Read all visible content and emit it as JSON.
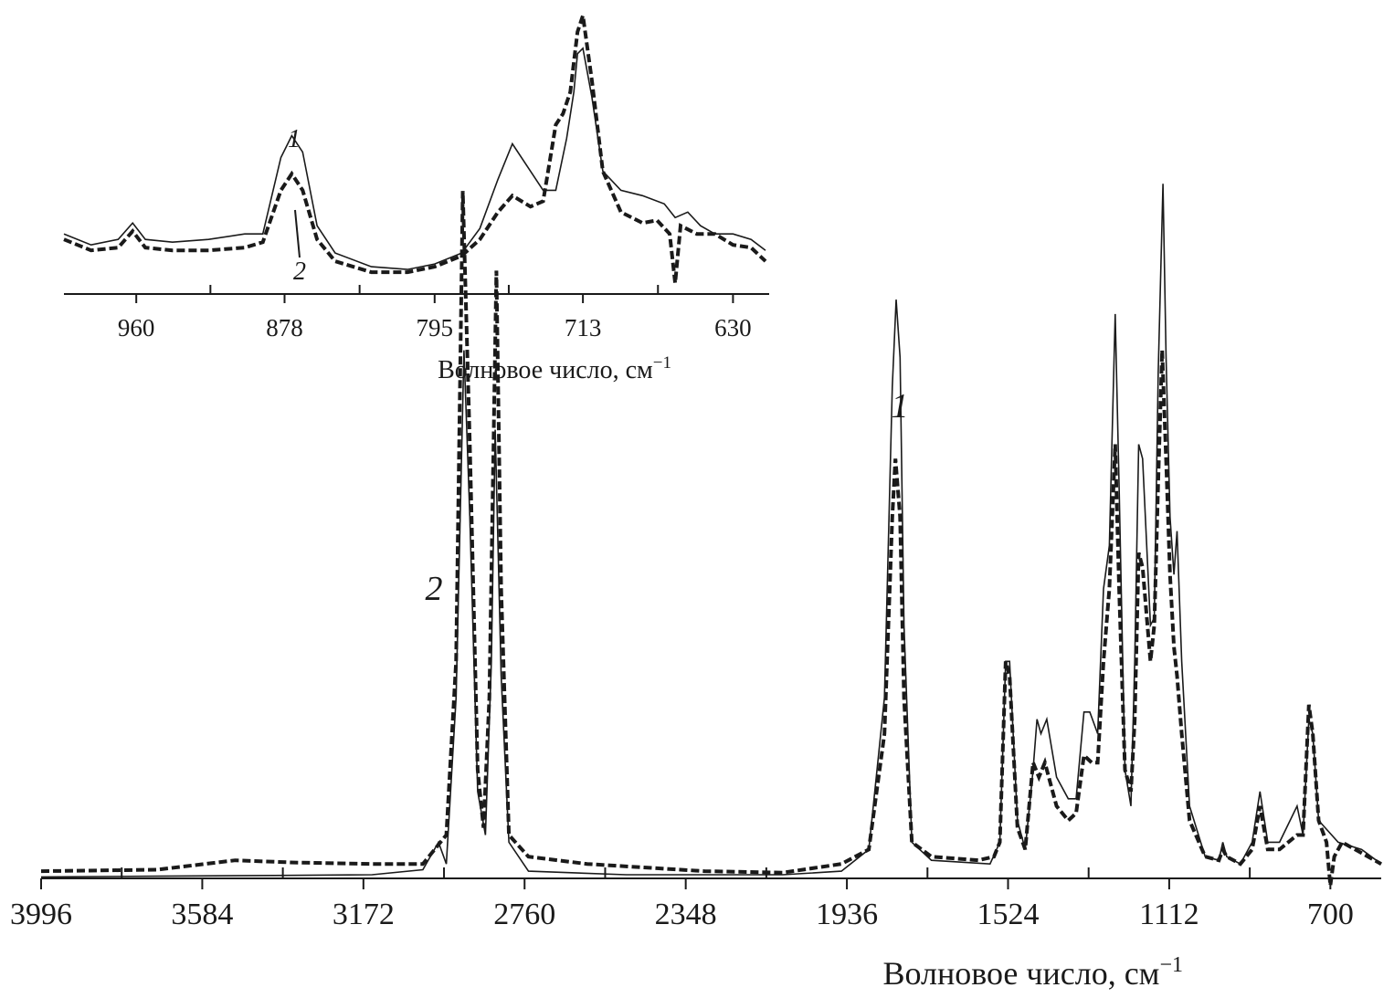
{
  "chart_data": [
    {
      "type": "line",
      "title": "",
      "xlabel": "Волновое число, см",
      "xlabel_sup": "−1",
      "ylabel": "",
      "x_reversed": true,
      "xlim": [
        3996,
        570
      ],
      "ylim": [
        0,
        1.05
      ],
      "x_ticks": [
        3996,
        3584,
        3172,
        2760,
        2348,
        1936,
        1524,
        1112,
        700
      ],
      "grid": false,
      "series": [
        {
          "name": "1",
          "style": "solid",
          "points": [
            [
              3996,
              0.002
            ],
            [
              3700,
              0.003
            ],
            [
              3400,
              0.004
            ],
            [
              3150,
              0.005
            ],
            [
              3020,
              0.012
            ],
            [
              2980,
              0.05
            ],
            [
              2960,
              0.02
            ],
            [
              2935,
              0.25
            ],
            [
              2915,
              0.73
            ],
            [
              2900,
              0.5
            ],
            [
              2880,
              0.12
            ],
            [
              2860,
              0.06
            ],
            [
              2845,
              0.3
            ],
            [
              2835,
              0.62
            ],
            [
              2820,
              0.28
            ],
            [
              2800,
              0.05
            ],
            [
              2750,
              0.01
            ],
            [
              2500,
              0.005
            ],
            [
              2100,
              0.005
            ],
            [
              1950,
              0.01
            ],
            [
              1880,
              0.04
            ],
            [
              1840,
              0.25
            ],
            [
              1820,
              0.68
            ],
            [
              1810,
              0.8
            ],
            [
              1800,
              0.72
            ],
            [
              1790,
              0.35
            ],
            [
              1770,
              0.05
            ],
            [
              1720,
              0.025
            ],
            [
              1570,
              0.02
            ],
            [
              1545,
              0.05
            ],
            [
              1530,
              0.3
            ],
            [
              1520,
              0.3
            ],
            [
              1500,
              0.08
            ],
            [
              1480,
              0.04
            ],
            [
              1460,
              0.15
            ],
            [
              1450,
              0.22
            ],
            [
              1440,
              0.2
            ],
            [
              1425,
              0.22
            ],
            [
              1400,
              0.14
            ],
            [
              1370,
              0.11
            ],
            [
              1350,
              0.11
            ],
            [
              1330,
              0.23
            ],
            [
              1315,
              0.23
            ],
            [
              1295,
              0.2
            ],
            [
              1280,
              0.4
            ],
            [
              1265,
              0.46
            ],
            [
              1250,
              0.78
            ],
            [
              1240,
              0.54
            ],
            [
              1225,
              0.15
            ],
            [
              1210,
              0.1
            ],
            [
              1200,
              0.3
            ],
            [
              1190,
              0.6
            ],
            [
              1180,
              0.58
            ],
            [
              1160,
              0.35
            ],
            [
              1150,
              0.36
            ],
            [
              1140,
              0.7
            ],
            [
              1128,
              0.96
            ],
            [
              1120,
              0.72
            ],
            [
              1110,
              0.5
            ],
            [
              1100,
              0.42
            ],
            [
              1092,
              0.48
            ],
            [
              1080,
              0.3
            ],
            [
              1060,
              0.1
            ],
            [
              1020,
              0.03
            ],
            [
              985,
              0.025
            ],
            [
              975,
              0.05
            ],
            [
              965,
              0.03
            ],
            [
              930,
              0.02
            ],
            [
              900,
              0.05
            ],
            [
              880,
              0.12
            ],
            [
              860,
              0.05
            ],
            [
              830,
              0.05
            ],
            [
              785,
              0.1
            ],
            [
              770,
              0.06
            ],
            [
              755,
              0.22
            ],
            [
              745,
              0.2
            ],
            [
              730,
              0.08
            ],
            [
              680,
              0.05
            ],
            [
              620,
              0.04
            ],
            [
              570,
              0.02
            ]
          ]
        },
        {
          "name": "2",
          "style": "dashed",
          "points": [
            [
              3996,
              0.01
            ],
            [
              3700,
              0.012
            ],
            [
              3500,
              0.025
            ],
            [
              3350,
              0.022
            ],
            [
              3150,
              0.02
            ],
            [
              3020,
              0.02
            ],
            [
              2960,
              0.06
            ],
            [
              2935,
              0.3
            ],
            [
              2918,
              0.95
            ],
            [
              2900,
              0.6
            ],
            [
              2880,
              0.15
            ],
            [
              2865,
              0.07
            ],
            [
              2850,
              0.25
            ],
            [
              2832,
              0.84
            ],
            [
              2820,
              0.4
            ],
            [
              2800,
              0.06
            ],
            [
              2750,
              0.03
            ],
            [
              2600,
              0.02
            ],
            [
              2300,
              0.01
            ],
            [
              2100,
              0.008
            ],
            [
              1950,
              0.02
            ],
            [
              1880,
              0.04
            ],
            [
              1840,
              0.2
            ],
            [
              1820,
              0.5
            ],
            [
              1812,
              0.58
            ],
            [
              1800,
              0.5
            ],
            [
              1790,
              0.25
            ],
            [
              1770,
              0.05
            ],
            [
              1720,
              0.03
            ],
            [
              1600,
              0.025
            ],
            [
              1560,
              0.03
            ],
            [
              1545,
              0.05
            ],
            [
              1530,
              0.3
            ],
            [
              1520,
              0.28
            ],
            [
              1500,
              0.07
            ],
            [
              1480,
              0.04
            ],
            [
              1460,
              0.16
            ],
            [
              1445,
              0.14
            ],
            [
              1430,
              0.16
            ],
            [
              1400,
              0.1
            ],
            [
              1370,
              0.08
            ],
            [
              1350,
              0.09
            ],
            [
              1330,
              0.17
            ],
            [
              1310,
              0.16
            ],
            [
              1295,
              0.16
            ],
            [
              1280,
              0.3
            ],
            [
              1265,
              0.4
            ],
            [
              1250,
              0.6
            ],
            [
              1240,
              0.4
            ],
            [
              1225,
              0.15
            ],
            [
              1210,
              0.12
            ],
            [
              1200,
              0.22
            ],
            [
              1190,
              0.45
            ],
            [
              1180,
              0.43
            ],
            [
              1160,
              0.3
            ],
            [
              1150,
              0.35
            ],
            [
              1140,
              0.55
            ],
            [
              1130,
              0.73
            ],
            [
              1120,
              0.58
            ],
            [
              1110,
              0.42
            ],
            [
              1100,
              0.32
            ],
            [
              1092,
              0.28
            ],
            [
              1080,
              0.2
            ],
            [
              1060,
              0.08
            ],
            [
              1020,
              0.03
            ],
            [
              985,
              0.025
            ],
            [
              975,
              0.04
            ],
            [
              965,
              0.03
            ],
            [
              930,
              0.02
            ],
            [
              900,
              0.04
            ],
            [
              880,
              0.1
            ],
            [
              860,
              0.04
            ],
            [
              830,
              0.04
            ],
            [
              785,
              0.06
            ],
            [
              770,
              0.06
            ],
            [
              755,
              0.24
            ],
            [
              745,
              0.2
            ],
            [
              730,
              0.08
            ],
            [
              710,
              0.05
            ],
            [
              700,
              -0.01
            ],
            [
              690,
              0.03
            ],
            [
              670,
              0.05
            ],
            [
              620,
              0.035
            ],
            [
              570,
              0.02
            ]
          ]
        }
      ],
      "annotations": [
        {
          "text": "1",
          "x": 1960,
          "y": 0.72,
          "target": "series-1"
        },
        {
          "text": "2",
          "x": 3080,
          "y": 0.43,
          "target": "series-2"
        }
      ]
    },
    {
      "type": "line",
      "title": "",
      "xlabel": "Волновое число, см",
      "xlabel_sup": "−1",
      "ylabel": "",
      "x_reversed": true,
      "xlim": [
        1000,
        610
      ],
      "ylim": [
        0,
        1.05
      ],
      "x_ticks": [
        960,
        878,
        795,
        713,
        630
      ],
      "grid": false,
      "series": [
        {
          "name": "1",
          "style": "solid",
          "points": [
            [
              1000,
              0.22
            ],
            [
              985,
              0.18
            ],
            [
              970,
              0.2
            ],
            [
              962,
              0.26
            ],
            [
              955,
              0.2
            ],
            [
              940,
              0.19
            ],
            [
              920,
              0.2
            ],
            [
              900,
              0.22
            ],
            [
              890,
              0.22
            ],
            [
              880,
              0.5
            ],
            [
              874,
              0.58
            ],
            [
              868,
              0.52
            ],
            [
              860,
              0.25
            ],
            [
              850,
              0.15
            ],
            [
              830,
              0.1
            ],
            [
              810,
              0.09
            ],
            [
              795,
              0.11
            ],
            [
              780,
              0.15
            ],
            [
              770,
              0.24
            ],
            [
              760,
              0.42
            ],
            [
              752,
              0.55
            ],
            [
              742,
              0.45
            ],
            [
              735,
              0.38
            ],
            [
              728,
              0.38
            ],
            [
              722,
              0.57
            ],
            [
              718,
              0.74
            ],
            [
              716,
              0.88
            ],
            [
              713,
              0.9
            ],
            [
              708,
              0.72
            ],
            [
              702,
              0.45
            ],
            [
              692,
              0.38
            ],
            [
              680,
              0.36
            ],
            [
              668,
              0.33
            ],
            [
              662,
              0.28
            ],
            [
              655,
              0.3
            ],
            [
              648,
              0.25
            ],
            [
              640,
              0.22
            ],
            [
              630,
              0.22
            ],
            [
              620,
              0.2
            ],
            [
              612,
              0.16
            ]
          ]
        },
        {
          "name": "2",
          "style": "dashed",
          "points": [
            [
              1000,
              0.2
            ],
            [
              985,
              0.16
            ],
            [
              970,
              0.17
            ],
            [
              962,
              0.23
            ],
            [
              955,
              0.17
            ],
            [
              940,
              0.16
            ],
            [
              920,
              0.16
            ],
            [
              900,
              0.17
            ],
            [
              890,
              0.19
            ],
            [
              880,
              0.38
            ],
            [
              874,
              0.44
            ],
            [
              868,
              0.38
            ],
            [
              860,
              0.2
            ],
            [
              850,
              0.12
            ],
            [
              830,
              0.08
            ],
            [
              810,
              0.08
            ],
            [
              795,
              0.1
            ],
            [
              780,
              0.14
            ],
            [
              770,
              0.2
            ],
            [
              760,
              0.3
            ],
            [
              752,
              0.36
            ],
            [
              742,
              0.32
            ],
            [
              735,
              0.34
            ],
            [
              728,
              0.62
            ],
            [
              724,
              0.66
            ],
            [
              720,
              0.74
            ],
            [
              716,
              0.96
            ],
            [
              713,
              1.02
            ],
            [
              708,
              0.78
            ],
            [
              702,
              0.45
            ],
            [
              692,
              0.3
            ],
            [
              680,
              0.26
            ],
            [
              672,
              0.27
            ],
            [
              665,
              0.22
            ],
            [
              662,
              0.04
            ],
            [
              659,
              0.25
            ],
            [
              650,
              0.22
            ],
            [
              640,
              0.22
            ],
            [
              630,
              0.18
            ],
            [
              620,
              0.17
            ],
            [
              612,
              0.12
            ]
          ]
        }
      ],
      "annotations": [
        {
          "text": "1",
          "x": 877,
          "y": 0.66,
          "target": "series-1"
        },
        {
          "text": "2",
          "x": 872,
          "y": 0.05,
          "target": "series-2"
        }
      ]
    }
  ]
}
